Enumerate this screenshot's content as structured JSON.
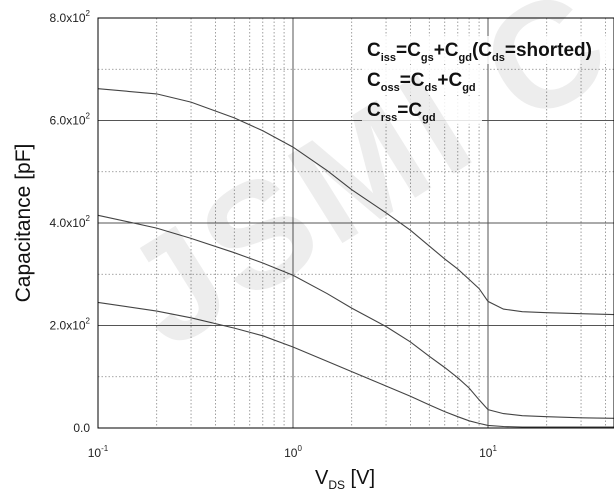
{
  "watermark_text": "JSMI C",
  "chart_data": {
    "type": "line",
    "xscale": "log",
    "xlim": [
      0.1,
      60
    ],
    "ylim": [
      0,
      800
    ],
    "grid": true,
    "x_ticks": [
      {
        "base": "10",
        "exp": "-1",
        "value": 0.1
      },
      {
        "base": "10",
        "exp": "0",
        "value": 1
      },
      {
        "base": "10",
        "exp": "1",
        "value": 10
      }
    ],
    "y_ticks": [
      {
        "mant": "0.0",
        "exp": "",
        "value": 0
      },
      {
        "mant": "2.0x10",
        "exp": "2",
        "value": 200
      },
      {
        "mant": "4.0x10",
        "exp": "2",
        "value": 400
      },
      {
        "mant": "6.0x10",
        "exp": "2",
        "value": 600
      },
      {
        "mant": "8.0x10",
        "exp": "2",
        "value": 800
      }
    ],
    "xlabel": {
      "main": "V",
      "sub": "DS",
      "unit": "[V]"
    },
    "ylabel": "Capacitance   [pF]",
    "legend": [
      {
        "parts": [
          [
            "C",
            ""
          ],
          [
            "iss",
            "sub"
          ],
          [
            "=C",
            ""
          ],
          [
            "gs",
            "sub"
          ],
          [
            "+C",
            ""
          ],
          [
            "gd",
            "sub"
          ],
          [
            "(C",
            ""
          ],
          [
            "ds",
            "sub"
          ],
          [
            "=shorted)",
            ""
          ]
        ]
      },
      {
        "parts": [
          [
            "C",
            ""
          ],
          [
            "oss",
            "sub"
          ],
          [
            "=C",
            ""
          ],
          [
            "ds",
            "sub"
          ],
          [
            "+C",
            ""
          ],
          [
            "gd",
            "sub"
          ]
        ]
      },
      {
        "parts": [
          [
            "C",
            ""
          ],
          [
            "rss",
            "sub"
          ],
          [
            "=C",
            ""
          ],
          [
            "gd",
            "sub"
          ]
        ]
      }
    ],
    "series": [
      {
        "name": "Ciss",
        "x": [
          0.1,
          0.2,
          0.3,
          0.5,
          0.7,
          1,
          1.5,
          2,
          3,
          4,
          5,
          6,
          7,
          8,
          9,
          10,
          12,
          15,
          20,
          30,
          60
        ],
        "y": [
          662,
          652,
          636,
          605,
          580,
          548,
          502,
          465,
          420,
          386,
          355,
          330,
          310,
          290,
          272,
          247,
          232,
          227,
          225,
          223,
          220
        ]
      },
      {
        "name": "Coss",
        "x": [
          0.1,
          0.2,
          0.3,
          0.5,
          0.7,
          1,
          1.5,
          2,
          3,
          4,
          5,
          6,
          7,
          8,
          9,
          10,
          12,
          15,
          20,
          30,
          60
        ],
        "y": [
          415,
          390,
          370,
          342,
          322,
          298,
          262,
          234,
          198,
          168,
          140,
          118,
          98,
          78,
          55,
          36,
          28,
          24,
          22,
          20,
          18
        ]
      },
      {
        "name": "Crss",
        "x": [
          0.1,
          0.2,
          0.3,
          0.5,
          0.7,
          1,
          1.5,
          2,
          3,
          4,
          5,
          6,
          7,
          8,
          9,
          10,
          12,
          15,
          20,
          30,
          60
        ],
        "y": [
          245,
          228,
          215,
          195,
          180,
          158,
          130,
          110,
          82,
          62,
          45,
          32,
          22,
          14,
          9,
          5,
          3,
          2,
          2,
          2,
          2
        ]
      }
    ],
    "colors": {
      "line": "#444444",
      "grid_major": "#555555",
      "grid_minor": "#888888"
    }
  }
}
